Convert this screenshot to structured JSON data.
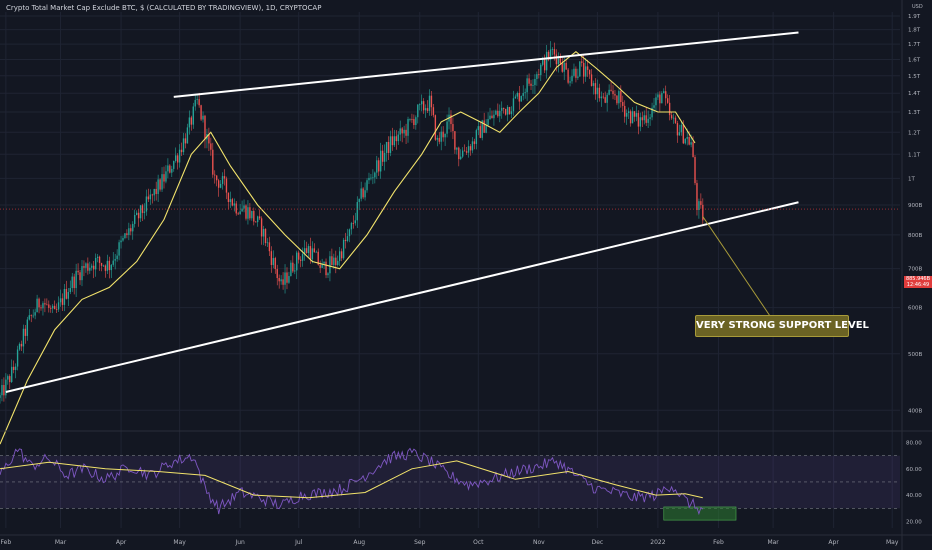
{
  "header": {
    "title": "Crypto Total Market Cap Exclude BTC, $ (CALCULATED BY TRADINGVIEW), 1D, CRYPTOCAP"
  },
  "annotation": {
    "label": "VERY STRONG SUPPORT LEVEL"
  },
  "price_tag": {
    "value": "885.946B",
    "countdown": "12:46:49"
  },
  "colors": {
    "background": "#131722",
    "up_candle": "#26a69a",
    "down_candle": "#ef5350",
    "moving_average": "#f2e36b",
    "rsi_line": "#7e57c2",
    "channel_lines": "#ffffff",
    "annotation_bg": "#6b6324",
    "oversold_highlight": "#2e7d32"
  },
  "chart_data": [
    {
      "type": "candlestick",
      "title": "Crypto Total Market Cap Exclude BTC, $ (CALCULATED BY TRADINGVIEW), 1D, CRYPTOCAP",
      "y_unit_label": "USD",
      "y_ticks": [
        "400B",
        "500B",
        "600B",
        "700B",
        "800B",
        "900B",
        "1T",
        "1.1T",
        "1.2T",
        "1.3T",
        "1.4T",
        "1.5T",
        "1.6T",
        "1.7T",
        "1.8T",
        "1.9T"
      ],
      "y_tick_values": [
        400,
        500,
        600,
        700,
        800,
        900,
        1000,
        1100,
        1200,
        1300,
        1400,
        1500,
        1600,
        1700,
        1800,
        1900
      ],
      "ylim": [
        370,
        1930
      ],
      "y_unit": "billion USD",
      "x_ticks": [
        "Feb",
        "Mar",
        "Apr",
        "May",
        "Jun",
        "Jul",
        "Aug",
        "Sep",
        "Oct",
        "Nov",
        "Dec",
        "2022",
        "Feb",
        "Mar",
        "Apr",
        "May"
      ],
      "x_tick_values": [
        "2021-02-01",
        "2021-03-01",
        "2021-04-01",
        "2021-05-01",
        "2021-06-01",
        "2021-07-01",
        "2021-08-01",
        "2021-09-01",
        "2021-10-01",
        "2021-11-01",
        "2021-12-01",
        "2022-01-01",
        "2022-02-01",
        "2022-03-01",
        "2022-04-01",
        "2022-05-01"
      ],
      "xlim": [
        "2021-01-29",
        "2022-05-05"
      ],
      "close_path": {
        "dates": [
          "2021-01-29",
          "2021-02-05",
          "2021-02-12",
          "2021-02-19",
          "2021-02-26",
          "2021-03-05",
          "2021-03-12",
          "2021-03-19",
          "2021-03-26",
          "2021-04-02",
          "2021-04-09",
          "2021-04-16",
          "2021-04-23",
          "2021-04-30",
          "2021-05-05",
          "2021-05-10",
          "2021-05-13",
          "2021-05-19",
          "2021-05-23",
          "2021-05-29",
          "2021-06-05",
          "2021-06-12",
          "2021-06-19",
          "2021-06-22",
          "2021-06-29",
          "2021-07-06",
          "2021-07-13",
          "2021-07-20",
          "2021-07-27",
          "2021-08-03",
          "2021-08-10",
          "2021-08-17",
          "2021-08-24",
          "2021-08-31",
          "2021-09-06",
          "2021-09-10",
          "2021-09-16",
          "2021-09-21",
          "2021-09-28",
          "2021-10-05",
          "2021-10-12",
          "2021-10-19",
          "2021-10-26",
          "2021-11-02",
          "2021-11-08",
          "2021-11-12",
          "2021-11-16",
          "2021-11-22",
          "2021-11-29",
          "2021-12-04",
          "2021-12-10",
          "2021-12-16",
          "2021-12-22",
          "2021-12-28",
          "2022-01-03",
          "2022-01-08",
          "2022-01-13",
          "2022-01-18",
          "2022-01-21",
          "2022-01-24"
        ],
        "close": [
          420,
          470,
          560,
          620,
          580,
          650,
          700,
          720,
          710,
          780,
          850,
          920,
          1000,
          1100,
          1200,
          1350,
          1250,
          1000,
          980,
          900,
          880,
          820,
          700,
          650,
          720,
          760,
          700,
          720,
          800,
          950,
          1050,
          1150,
          1200,
          1300,
          1350,
          1150,
          1250,
          1100,
          1150,
          1250,
          1300,
          1350,
          1450,
          1550,
          1650,
          1600,
          1500,
          1550,
          1450,
          1350,
          1400,
          1300,
          1250,
          1300,
          1400,
          1250,
          1200,
          1150,
          900,
          860
        ]
      },
      "moving_average": {
        "dates": [
          "2021-01-29",
          "2021-02-12",
          "2021-02-26",
          "2021-03-12",
          "2021-03-26",
          "2021-04-09",
          "2021-04-23",
          "2021-05-07",
          "2021-05-17",
          "2021-05-27",
          "2021-06-10",
          "2021-06-24",
          "2021-07-08",
          "2021-07-22",
          "2021-08-05",
          "2021-08-19",
          "2021-09-02",
          "2021-09-12",
          "2021-09-22",
          "2021-10-02",
          "2021-10-12",
          "2021-10-22",
          "2021-11-01",
          "2021-11-10",
          "2021-11-20",
          "2021-11-30",
          "2021-12-10",
          "2021-12-20",
          "2022-01-01",
          "2022-01-10",
          "2022-01-20"
        ],
        "values": [
          350,
          450,
          550,
          620,
          650,
          720,
          850,
          1100,
          1200,
          1050,
          900,
          800,
          720,
          700,
          800,
          950,
          1100,
          1250,
          1300,
          1250,
          1200,
          1300,
          1400,
          1550,
          1650,
          1550,
          1450,
          1350,
          1300,
          1300,
          1150
        ]
      },
      "channel_upper": [
        {
          "x": "2021-04-28",
          "y": 1380
        },
        {
          "x": "2022-03-14",
          "y": 1780
        }
      ],
      "channel_lower": [
        {
          "x": "2021-02-01",
          "y": 430
        },
        {
          "x": "2022-03-14",
          "y": 910
        }
      ],
      "current_price_line": 885.946
    },
    {
      "type": "line",
      "title": "",
      "y_ticks": [
        "20.00",
        "40.00",
        "60.00",
        "80.00"
      ],
      "y_tick_values": [
        20,
        40,
        60,
        80
      ],
      "ylim": [
        15,
        88
      ],
      "bands": [
        30,
        50,
        70
      ],
      "rsi": {
        "dates": [
          "2021-01-29",
          "2021-02-07",
          "2021-02-14",
          "2021-02-23",
          "2021-03-04",
          "2021-03-13",
          "2021-03-24",
          "2021-04-06",
          "2021-04-16",
          "2021-04-27",
          "2021-05-08",
          "2021-05-14",
          "2021-05-21",
          "2021-06-01",
          "2021-06-11",
          "2021-06-22",
          "2021-07-02",
          "2021-07-14",
          "2021-07-24",
          "2021-08-04",
          "2021-08-16",
          "2021-08-28",
          "2021-09-06",
          "2021-09-16",
          "2021-09-26",
          "2021-10-08",
          "2021-10-20",
          "2021-11-01",
          "2021-11-10",
          "2021-11-20",
          "2021-11-30",
          "2021-12-10",
          "2021-12-20",
          "2021-12-31",
          "2022-01-08",
          "2022-01-15",
          "2022-01-24"
        ],
        "values": [
          55,
          75,
          62,
          68,
          55,
          60,
          52,
          62,
          55,
          65,
          70,
          45,
          30,
          42,
          38,
          32,
          40,
          42,
          45,
          55,
          68,
          72,
          66,
          55,
          48,
          52,
          58,
          62,
          66,
          55,
          45,
          42,
          38,
          40,
          48,
          36,
          28
        ]
      },
      "rsi_ma": {
        "dates": [
          "2021-01-29",
          "2021-02-23",
          "2021-03-24",
          "2021-04-20",
          "2021-05-14",
          "2021-06-08",
          "2021-07-06",
          "2021-08-04",
          "2021-08-28",
          "2021-09-20",
          "2021-10-20",
          "2021-11-16",
          "2021-12-10",
          "2021-12-31",
          "2022-01-15",
          "2022-01-24"
        ],
        "values": [
          60,
          65,
          60,
          58,
          55,
          40,
          38,
          42,
          60,
          66,
          52,
          58,
          48,
          40,
          41,
          38
        ]
      },
      "oversold_highlight": {
        "x0": "2022-01-04",
        "x1": "2022-02-10",
        "y0": 21,
        "y1": 31
      }
    }
  ]
}
